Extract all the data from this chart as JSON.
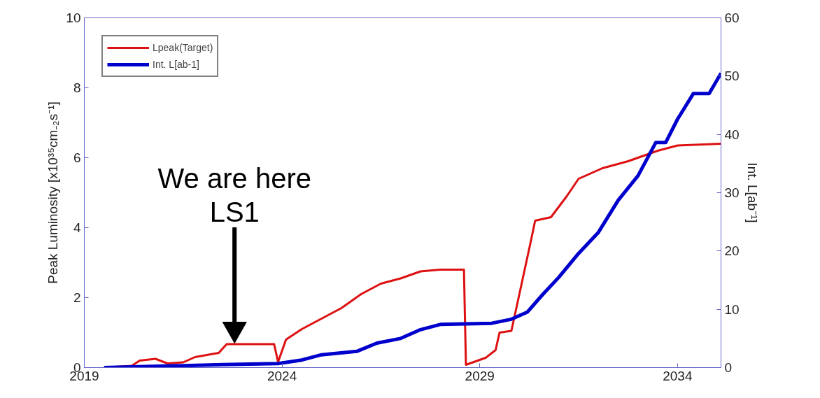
{
  "chart_data": {
    "type": "line",
    "ylabel": "Peak Luminosity [x10³⁵cm₋₂s⁻¹]",
    "y2label": "Int. L[ab⁻¹]",
    "xlim": [
      2019,
      2035.1
    ],
    "xticks": [
      2019,
      2024,
      2029,
      2034
    ],
    "ylim": [
      0,
      10
    ],
    "yticks": [
      0,
      2,
      4,
      6,
      8,
      10
    ],
    "y2lim": [
      0,
      60
    ],
    "y2ticks": [
      0,
      10,
      20,
      30,
      40,
      50,
      60
    ],
    "legend": "top left",
    "line_style": "solid",
    "marker": "none",
    "series": [
      {
        "name": "Lpeak(Target)",
        "color": "#dd1111",
        "x": [
          2019.5,
          2020.2,
          2020.4,
          2020.8,
          2021.1,
          2021.5,
          2021.8,
          2022.4,
          2022.6,
          2023.8,
          2023.9,
          2024.1,
          2024.5,
          2025,
          2025.5,
          2026,
          2026.5,
          2027,
          2027.5,
          2028,
          2028.6,
          2028.65,
          2029.15,
          2029.4,
          2029.5,
          2029.8,
          2030.04,
          2030.3,
          2030.4,
          2030.8,
          2031.2,
          2031.5,
          2032.1,
          2032.75,
          2033.5,
          2034,
          2035.1
        ],
        "values": [
          0,
          0.05,
          0.2,
          0.25,
          0.12,
          0.15,
          0.3,
          0.42,
          0.67,
          0.67,
          0.16,
          0.8,
          1.1,
          1.4,
          1.7,
          2.1,
          2.4,
          2.55,
          2.75,
          2.8,
          2.8,
          0.08,
          0.28,
          0.5,
          1.0,
          1.05,
          2.3,
          3.66,
          4.2,
          4.3,
          4.9,
          5.4,
          5.7,
          5.9,
          6.2,
          6.35,
          6.4
        ]
      },
      {
        "name": "Int. L[ab-1]",
        "color": "#0000cc",
        "axis": "y2",
        "x": [
          2019.5,
          2022.5,
          2023.9,
          2024.5,
          2025,
          2025.9,
          2026.4,
          2027,
          2027.5,
          2028,
          2029.3,
          2029.8,
          2030.2,
          2030.6,
          2031,
          2031.5,
          2032,
          2032.5,
          2033,
          2033.45,
          2033.7,
          2034,
          2034.4,
          2034.8,
          2035.1
        ],
        "values": [
          0,
          0.5,
          0.7,
          1.3,
          2.2,
          2.8,
          4.2,
          5,
          6.5,
          7.4,
          7.6,
          8.3,
          9.5,
          12.6,
          15.5,
          19.6,
          23.2,
          28.7,
          32.9,
          38.6,
          38.6,
          42.6,
          47,
          47,
          50.5
        ]
      }
    ],
    "annotations": [
      "We are here\nLS1"
    ]
  }
}
